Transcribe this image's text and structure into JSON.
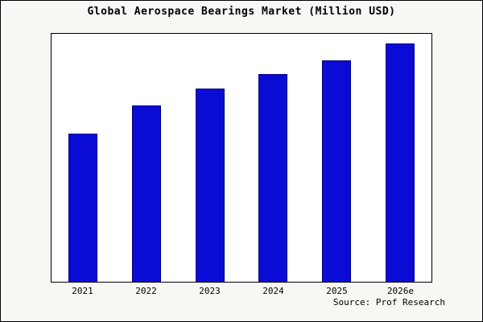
{
  "chart_data": {
    "type": "bar",
    "title": "Global Aerospace Bearings Market (Million USD)",
    "categories": [
      "2021",
      "2022",
      "2023",
      "2024",
      "2025",
      "2026e"
    ],
    "values": [
      62,
      74,
      81,
      87,
      93,
      100
    ],
    "xlabel": "",
    "ylabel": "",
    "ylim": [
      0,
      104
    ],
    "grid": false,
    "legend": false,
    "bar_color": "#0b0bd6",
    "bar_edge_color": "#000080",
    "plot_background": "#ffffff",
    "figure_background": "#f7f7f4",
    "source_note": "Source: Prof Research"
  }
}
